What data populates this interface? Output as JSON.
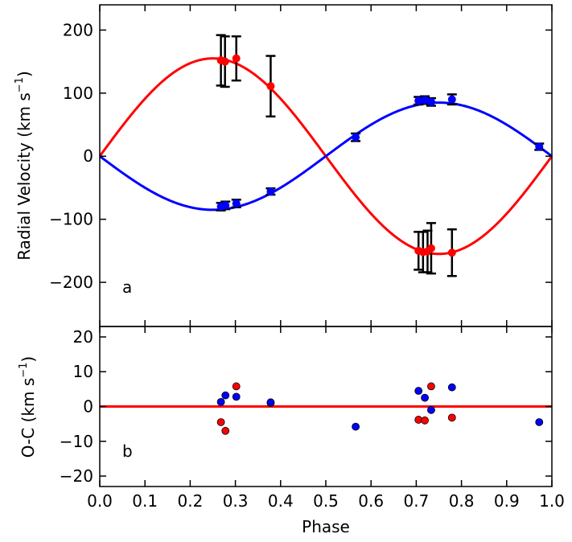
{
  "chart_data": [
    {
      "type": "scatter",
      "panel": "a",
      "xlabel": "",
      "ylabel": "Radial Velocity (km s",
      "ylabel_sup": "−1",
      "ylabel_close": ")",
      "xlim": [
        0.0,
        1.0
      ],
      "ylim": [
        -270,
        240
      ],
      "yticks": [
        200,
        100,
        0,
        -100,
        -200
      ],
      "ytick_labels": [
        "200",
        "100",
        "0",
        "−100",
        "−200"
      ],
      "series": [
        {
          "name": "primary model",
          "kind": "curve",
          "color": "#ff0000",
          "amplitude": 155,
          "phase_zero": 0.0,
          "gamma": 0
        },
        {
          "name": "secondary model",
          "kind": "curve",
          "color": "#0000ff",
          "amplitude": -85,
          "phase_zero": 0.0,
          "gamma": 0
        },
        {
          "name": "red data",
          "kind": "points",
          "color": "#ff0000",
          "points": [
            {
              "x": 0.268,
              "y": 152,
              "err": 40
            },
            {
              "x": 0.277,
              "y": 150,
              "err": 40
            },
            {
              "x": 0.302,
              "y": 155,
              "err": 35
            },
            {
              "x": 0.378,
              "y": 111,
              "err": 48
            },
            {
              "x": 0.705,
              "y": -150,
              "err": 30
            },
            {
              "x": 0.715,
              "y": -152,
              "err": 32
            },
            {
              "x": 0.725,
              "y": -151,
              "err": 33
            },
            {
              "x": 0.733,
              "y": -146,
              "err": 40
            },
            {
              "x": 0.779,
              "y": -153,
              "err": 37
            }
          ]
        },
        {
          "name": "blue data",
          "kind": "points",
          "color": "#0000ff",
          "points": [
            {
              "x": 0.268,
              "y": -80,
              "err": 6
            },
            {
              "x": 0.278,
              "y": -78,
              "err": 6
            },
            {
              "x": 0.302,
              "y": -75,
              "err": 6
            },
            {
              "x": 0.378,
              "y": -56,
              "err": 5
            },
            {
              "x": 0.566,
              "y": 30,
              "err": 6
            },
            {
              "x": 0.705,
              "y": 88,
              "err": 6
            },
            {
              "x": 0.719,
              "y": 89,
              "err": 6
            },
            {
              "x": 0.733,
              "y": 86,
              "err": 6
            },
            {
              "x": 0.779,
              "y": 90,
              "err": 8
            },
            {
              "x": 0.972,
              "y": 15,
              "err": 5
            }
          ]
        }
      ]
    },
    {
      "type": "scatter",
      "panel": "b",
      "xlabel": "Phase",
      "ylabel": "O-C (km s",
      "ylabel_sup": "−1",
      "ylabel_close": ")",
      "xlim": [
        0.0,
        1.0
      ],
      "ylim": [
        -23,
        23
      ],
      "xticks": [
        0.0,
        0.1,
        0.2,
        0.3,
        0.4,
        0.5,
        0.6,
        0.7,
        0.8,
        0.9,
        1.0
      ],
      "xtick_labels": [
        "0.0",
        "0.1",
        "0.2",
        "0.3",
        "0.4",
        "0.5",
        "0.6",
        "0.7",
        "0.8",
        "0.9",
        "1.0"
      ],
      "yticks": [
        20,
        10,
        0,
        -10,
        -20
      ],
      "ytick_labels": [
        "20",
        "10",
        "0",
        "−10",
        "−20"
      ],
      "zero_line_color": "#ff0000",
      "series": [
        {
          "name": "red residuals",
          "color": "#ff0000",
          "points": [
            {
              "x": 0.268,
              "y": -4.5
            },
            {
              "x": 0.278,
              "y": -7.0
            },
            {
              "x": 0.302,
              "y": 5.8
            },
            {
              "x": 0.378,
              "y": 1.0
            },
            {
              "x": 0.705,
              "y": -3.8
            },
            {
              "x": 0.719,
              "y": -4.0
            },
            {
              "x": 0.733,
              "y": 5.8
            },
            {
              "x": 0.779,
              "y": -3.2
            }
          ]
        },
        {
          "name": "blue residuals",
          "color": "#0000ff",
          "points": [
            {
              "x": 0.268,
              "y": 1.3
            },
            {
              "x": 0.278,
              "y": 3.2
            },
            {
              "x": 0.302,
              "y": 2.8
            },
            {
              "x": 0.378,
              "y": 1.2
            },
            {
              "x": 0.566,
              "y": -5.8
            },
            {
              "x": 0.705,
              "y": 4.5
            },
            {
              "x": 0.719,
              "y": 2.5
            },
            {
              "x": 0.733,
              "y": -1.0
            },
            {
              "x": 0.779,
              "y": 5.5
            },
            {
              "x": 0.972,
              "y": -4.5
            }
          ]
        }
      ]
    }
  ]
}
